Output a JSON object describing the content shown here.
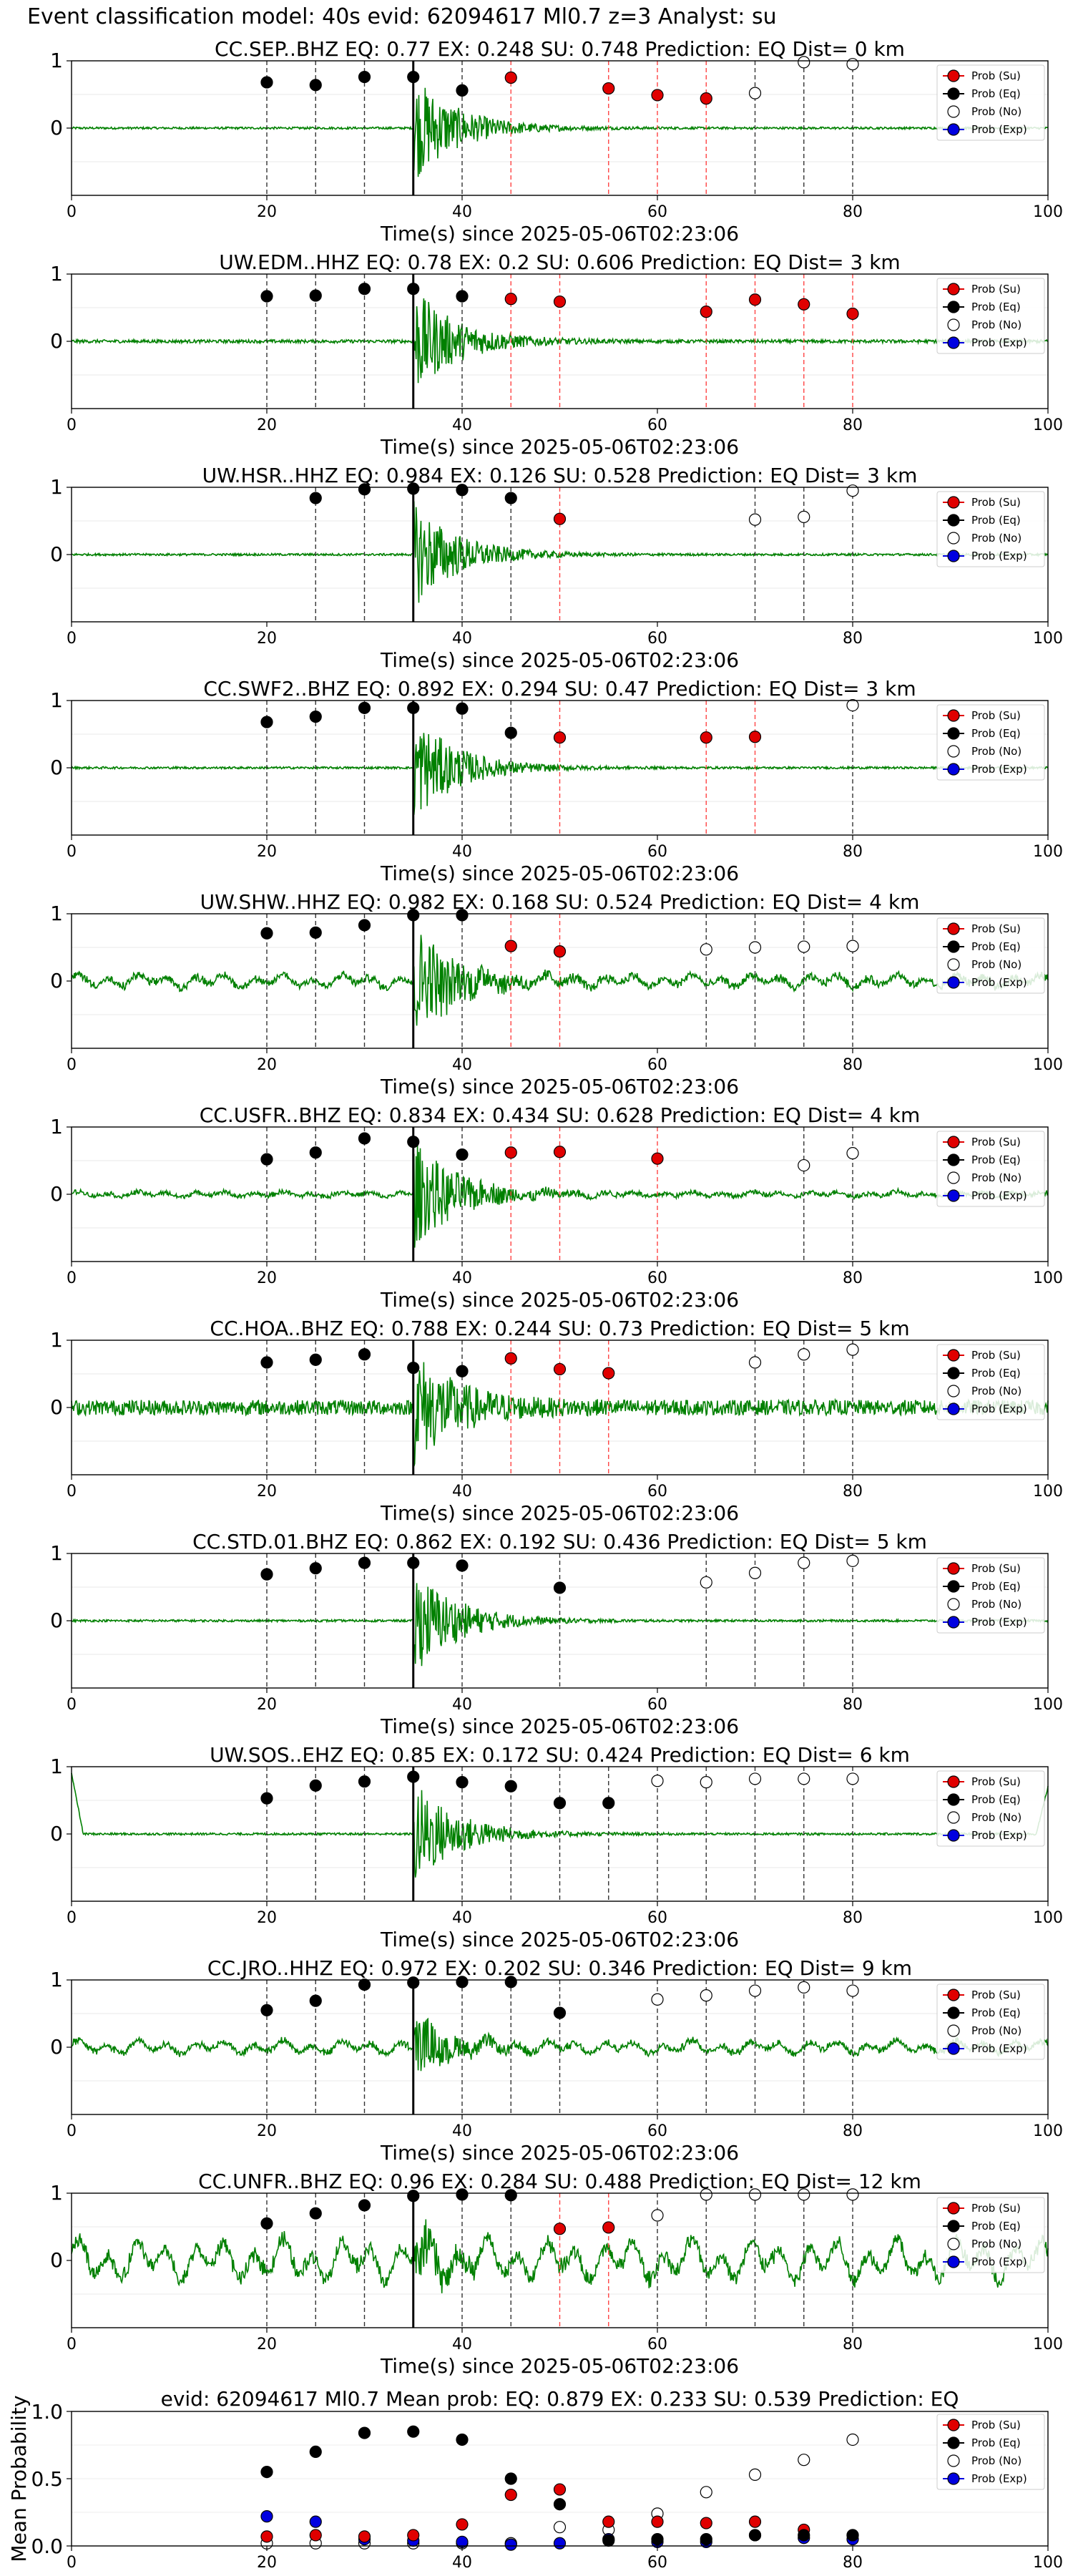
{
  "suptitle": "Event classification model: 40s evid: 62094617 Ml0.7 z=3 Analyst: su",
  "legend_labels": [
    "Prob (Su)",
    "Prob (Eq)",
    "Prob (No)",
    "Prob (Exp)"
  ],
  "colors": {
    "su": "#e00000",
    "eq": "#000000",
    "no": "#ffffff",
    "exp": "#0000e0",
    "wave": "#008000"
  },
  "chart_data": [
    {
      "type": "line",
      "title": "CC.SEP..BHZ   EQ: 0.77   EX: 0.248   SU: 0.748   Prediction: EQ    Dist= 0 km",
      "xlabel": "Time(s) since 2025-05-06T02:23:06",
      "ylabel": "",
      "xlim": [
        0,
        100
      ],
      "ylim": [
        -1,
        1
      ],
      "xticks": [
        "0",
        "20",
        "40",
        "60",
        "80",
        "100"
      ],
      "yticks": [
        "0",
        "1"
      ],
      "amplitude": 1.0,
      "noise": 0.02,
      "lowfreq": 0,
      "black_line_x": 35,
      "points": [
        {
          "x": 20,
          "y": 0.68,
          "cls": "eq"
        },
        {
          "x": 25,
          "y": 0.64,
          "cls": "eq"
        },
        {
          "x": 30,
          "y": 0.76,
          "cls": "eq"
        },
        {
          "x": 35,
          "y": 0.76,
          "cls": "eq"
        },
        {
          "x": 40,
          "y": 0.56,
          "cls": "eq"
        },
        {
          "x": 45,
          "y": 0.75,
          "cls": "su"
        },
        {
          "x": 55,
          "y": 0.59,
          "cls": "su"
        },
        {
          "x": 60,
          "y": 0.49,
          "cls": "su"
        },
        {
          "x": 65,
          "y": 0.44,
          "cls": "su"
        },
        {
          "x": 70,
          "y": 0.52,
          "cls": "no"
        },
        {
          "x": 75,
          "y": 0.98,
          "cls": "no"
        },
        {
          "x": 80,
          "y": 0.95,
          "cls": "no"
        }
      ]
    },
    {
      "type": "line",
      "title": "UW.EDM..HHZ   EQ: 0.78   EX: 0.2   SU: 0.606   Prediction: EQ    Dist= 3 km",
      "xlabel": "Time(s) since 2025-05-06T02:23:06",
      "ylabel": "",
      "xlim": [
        0,
        100
      ],
      "ylim": [
        -1,
        1
      ],
      "xticks": [
        "0",
        "20",
        "40",
        "60",
        "80",
        "100"
      ],
      "yticks": [
        "0",
        "1"
      ],
      "amplitude": 1.0,
      "noise": 0.03,
      "lowfreq": 0,
      "black_line_x": 35,
      "points": [
        {
          "x": 20,
          "y": 0.67,
          "cls": "eq"
        },
        {
          "x": 25,
          "y": 0.68,
          "cls": "eq"
        },
        {
          "x": 30,
          "y": 0.78,
          "cls": "eq"
        },
        {
          "x": 35,
          "y": 0.78,
          "cls": "eq"
        },
        {
          "x": 40,
          "y": 0.67,
          "cls": "eq"
        },
        {
          "x": 45,
          "y": 0.63,
          "cls": "su"
        },
        {
          "x": 50,
          "y": 0.59,
          "cls": "su"
        },
        {
          "x": 65,
          "y": 0.44,
          "cls": "su"
        },
        {
          "x": 70,
          "y": 0.62,
          "cls": "su"
        },
        {
          "x": 75,
          "y": 0.55,
          "cls": "su"
        },
        {
          "x": 80,
          "y": 0.41,
          "cls": "su"
        }
      ]
    },
    {
      "type": "line",
      "title": "UW.HSR..HHZ   EQ: 0.984   EX: 0.126   SU: 0.528   Prediction: EQ    Dist= 3 km",
      "xlabel": "Time(s) since 2025-05-06T02:23:06",
      "ylabel": "",
      "xlim": [
        0,
        100
      ],
      "ylim": [
        -1,
        1
      ],
      "xticks": [
        "0",
        "20",
        "40",
        "60",
        "80",
        "100"
      ],
      "yticks": [
        "0",
        "1"
      ],
      "amplitude": 1.0,
      "noise": 0.02,
      "lowfreq": 0,
      "black_line_x": 35,
      "points": [
        {
          "x": 25,
          "y": 0.84,
          "cls": "eq"
        },
        {
          "x": 30,
          "y": 0.97,
          "cls": "eq"
        },
        {
          "x": 35,
          "y": 0.98,
          "cls": "eq"
        },
        {
          "x": 40,
          "y": 0.96,
          "cls": "eq"
        },
        {
          "x": 45,
          "y": 0.84,
          "cls": "eq"
        },
        {
          "x": 50,
          "y": 0.53,
          "cls": "su"
        },
        {
          "x": 70,
          "y": 0.52,
          "cls": "no"
        },
        {
          "x": 75,
          "y": 0.56,
          "cls": "no"
        },
        {
          "x": 80,
          "y": 0.95,
          "cls": "no"
        }
      ]
    },
    {
      "type": "line",
      "title": "CC.SWF2..BHZ   EQ: 0.892   EX: 0.294   SU: 0.47   Prediction: EQ    Dist= 3 km",
      "xlabel": "Time(s) since 2025-05-06T02:23:06",
      "ylabel": "",
      "xlim": [
        0,
        100
      ],
      "ylim": [
        -1,
        1
      ],
      "xticks": [
        "0",
        "20",
        "40",
        "60",
        "80",
        "100"
      ],
      "yticks": [
        "0",
        "1"
      ],
      "amplitude": 1.0,
      "noise": 0.02,
      "lowfreq": 0,
      "black_line_x": 35,
      "points": [
        {
          "x": 20,
          "y": 0.68,
          "cls": "eq"
        },
        {
          "x": 25,
          "y": 0.76,
          "cls": "eq"
        },
        {
          "x": 30,
          "y": 0.89,
          "cls": "eq"
        },
        {
          "x": 35,
          "y": 0.89,
          "cls": "eq"
        },
        {
          "x": 40,
          "y": 0.88,
          "cls": "eq"
        },
        {
          "x": 45,
          "y": 0.52,
          "cls": "eq"
        },
        {
          "x": 50,
          "y": 0.45,
          "cls": "su"
        },
        {
          "x": 65,
          "y": 0.45,
          "cls": "su"
        },
        {
          "x": 70,
          "y": 0.46,
          "cls": "su"
        },
        {
          "x": 80,
          "y": 0.93,
          "cls": "no"
        }
      ]
    },
    {
      "type": "line",
      "title": "UW.SHW..HHZ   EQ: 0.982   EX: 0.168   SU: 0.524   Prediction: EQ    Dist= 4 km",
      "xlabel": "Time(s) since 2025-05-06T02:23:06",
      "ylabel": "",
      "xlim": [
        0,
        100
      ],
      "ylim": [
        -1,
        1
      ],
      "xticks": [
        "0",
        "20",
        "40",
        "60",
        "80",
        "100"
      ],
      "yticks": [
        "0",
        "1"
      ],
      "amplitude": 1.0,
      "noise": 0.06,
      "lowfreq": 0.1,
      "black_line_x": 35,
      "points": [
        {
          "x": 20,
          "y": 0.71,
          "cls": "eq"
        },
        {
          "x": 25,
          "y": 0.72,
          "cls": "eq"
        },
        {
          "x": 30,
          "y": 0.83,
          "cls": "eq"
        },
        {
          "x": 35,
          "y": 0.98,
          "cls": "eq"
        },
        {
          "x": 40,
          "y": 0.98,
          "cls": "eq"
        },
        {
          "x": 45,
          "y": 0.52,
          "cls": "su"
        },
        {
          "x": 50,
          "y": 0.44,
          "cls": "su"
        },
        {
          "x": 65,
          "y": 0.47,
          "cls": "no"
        },
        {
          "x": 70,
          "y": 0.5,
          "cls": "no"
        },
        {
          "x": 75,
          "y": 0.51,
          "cls": "no"
        },
        {
          "x": 80,
          "y": 0.52,
          "cls": "no"
        }
      ]
    },
    {
      "type": "line",
      "title": "CC.USFR..BHZ   EQ: 0.834   EX: 0.434   SU: 0.628   Prediction: EQ    Dist= 4 km",
      "xlabel": "Time(s) since 2025-05-06T02:23:06",
      "ylabel": "",
      "xlim": [
        0,
        100
      ],
      "ylim": [
        -1,
        1
      ],
      "xticks": [
        "0",
        "20",
        "40",
        "60",
        "80",
        "100"
      ],
      "yticks": [
        "0",
        "1"
      ],
      "amplitude": 1.0,
      "noise": 0.04,
      "lowfreq": 0.04,
      "black_line_x": 35,
      "points": [
        {
          "x": 20,
          "y": 0.52,
          "cls": "eq"
        },
        {
          "x": 25,
          "y": 0.62,
          "cls": "eq"
        },
        {
          "x": 30,
          "y": 0.83,
          "cls": "eq"
        },
        {
          "x": 35,
          "y": 0.78,
          "cls": "eq"
        },
        {
          "x": 40,
          "y": 0.59,
          "cls": "eq"
        },
        {
          "x": 45,
          "y": 0.62,
          "cls": "su"
        },
        {
          "x": 50,
          "y": 0.63,
          "cls": "su"
        },
        {
          "x": 60,
          "y": 0.53,
          "cls": "su"
        },
        {
          "x": 75,
          "y": 0.43,
          "cls": "no"
        },
        {
          "x": 80,
          "y": 0.61,
          "cls": "no"
        }
      ]
    },
    {
      "type": "line",
      "title": "CC.HOA..BHZ   EQ: 0.788   EX: 0.244   SU: 0.73   Prediction: EQ    Dist= 5 km",
      "xlabel": "Time(s) since 2025-05-06T02:23:06",
      "ylabel": "",
      "xlim": [
        0,
        100
      ],
      "ylim": [
        -1,
        1
      ],
      "xticks": [
        "0",
        "20",
        "40",
        "60",
        "80",
        "100"
      ],
      "yticks": [
        "0",
        "1"
      ],
      "amplitude": 1.0,
      "noise": 0.14,
      "lowfreq": 0,
      "black_line_x": 35,
      "points": [
        {
          "x": 20,
          "y": 0.67,
          "cls": "eq"
        },
        {
          "x": 25,
          "y": 0.71,
          "cls": "eq"
        },
        {
          "x": 30,
          "y": 0.79,
          "cls": "eq"
        },
        {
          "x": 35,
          "y": 0.59,
          "cls": "eq"
        },
        {
          "x": 40,
          "y": 0.54,
          "cls": "eq"
        },
        {
          "x": 45,
          "y": 0.73,
          "cls": "su"
        },
        {
          "x": 50,
          "y": 0.57,
          "cls": "su"
        },
        {
          "x": 55,
          "y": 0.51,
          "cls": "su"
        },
        {
          "x": 70,
          "y": 0.67,
          "cls": "no"
        },
        {
          "x": 75,
          "y": 0.79,
          "cls": "no"
        },
        {
          "x": 80,
          "y": 0.86,
          "cls": "no"
        }
      ]
    },
    {
      "type": "line",
      "title": "CC.STD.01.BHZ   EQ: 0.862   EX: 0.192   SU: 0.436   Prediction: EQ    Dist= 5 km",
      "xlabel": "Time(s) since 2025-05-06T02:23:06",
      "ylabel": "",
      "xlim": [
        0,
        100
      ],
      "ylim": [
        -1,
        1
      ],
      "xticks": [
        "0",
        "20",
        "40",
        "60",
        "80",
        "100"
      ],
      "yticks": [
        "0",
        "1"
      ],
      "amplitude": 1.0,
      "noise": 0.02,
      "lowfreq": 0,
      "black_line_x": 35,
      "points": [
        {
          "x": 20,
          "y": 0.69,
          "cls": "eq"
        },
        {
          "x": 25,
          "y": 0.78,
          "cls": "eq"
        },
        {
          "x": 30,
          "y": 0.86,
          "cls": "eq"
        },
        {
          "x": 35,
          "y": 0.86,
          "cls": "eq"
        },
        {
          "x": 40,
          "y": 0.82,
          "cls": "eq"
        },
        {
          "x": 50,
          "y": 0.49,
          "cls": "eq"
        },
        {
          "x": 65,
          "y": 0.57,
          "cls": "no"
        },
        {
          "x": 70,
          "y": 0.71,
          "cls": "no"
        },
        {
          "x": 75,
          "y": 0.86,
          "cls": "no"
        },
        {
          "x": 80,
          "y": 0.89,
          "cls": "no"
        }
      ]
    },
    {
      "type": "line",
      "title": "UW.SOS..EHZ   EQ: 0.85   EX: 0.172   SU: 0.424   Prediction: EQ    Dist= 6 km",
      "xlabel": "Time(s) since 2025-05-06T02:23:06",
      "ylabel": "",
      "xlim": [
        0,
        100
      ],
      "ylim": [
        -1,
        1
      ],
      "xticks": [
        "0",
        "20",
        "40",
        "60",
        "80",
        "100"
      ],
      "yticks": [
        "0",
        "1"
      ],
      "amplitude": 1.0,
      "noise": 0.02,
      "lowfreq": 0,
      "edge_spike": true,
      "black_line_x": 35,
      "points": [
        {
          "x": 20,
          "y": 0.53,
          "cls": "eq"
        },
        {
          "x": 25,
          "y": 0.72,
          "cls": "eq"
        },
        {
          "x": 30,
          "y": 0.78,
          "cls": "eq"
        },
        {
          "x": 35,
          "y": 0.85,
          "cls": "eq"
        },
        {
          "x": 40,
          "y": 0.77,
          "cls": "eq"
        },
        {
          "x": 45,
          "y": 0.71,
          "cls": "eq"
        },
        {
          "x": 50,
          "y": 0.46,
          "cls": "eq"
        },
        {
          "x": 55,
          "y": 0.46,
          "cls": "eq"
        },
        {
          "x": 60,
          "y": 0.79,
          "cls": "no"
        },
        {
          "x": 65,
          "y": 0.77,
          "cls": "no"
        },
        {
          "x": 70,
          "y": 0.82,
          "cls": "no"
        },
        {
          "x": 75,
          "y": 0.82,
          "cls": "no"
        },
        {
          "x": 80,
          "y": 0.82,
          "cls": "no"
        }
      ]
    },
    {
      "type": "line",
      "title": "CC.JRO..HHZ   EQ: 0.972   EX: 0.202   SU: 0.346   Prediction: EQ    Dist= 9 km",
      "xlabel": "Time(s) since 2025-05-06T02:23:06",
      "ylabel": "",
      "xlim": [
        0,
        100
      ],
      "ylim": [
        -1,
        1
      ],
      "xticks": [
        "0",
        "20",
        "40",
        "60",
        "80",
        "100"
      ],
      "yticks": [
        "0",
        "1"
      ],
      "amplitude": 0.6,
      "noise": 0.05,
      "lowfreq": 0.1,
      "black_line_x": 35,
      "points": [
        {
          "x": 20,
          "y": 0.55,
          "cls": "eq"
        },
        {
          "x": 25,
          "y": 0.69,
          "cls": "eq"
        },
        {
          "x": 30,
          "y": 0.93,
          "cls": "eq"
        },
        {
          "x": 35,
          "y": 0.96,
          "cls": "eq"
        },
        {
          "x": 40,
          "y": 0.97,
          "cls": "eq"
        },
        {
          "x": 45,
          "y": 0.97,
          "cls": "eq"
        },
        {
          "x": 50,
          "y": 0.51,
          "cls": "eq"
        },
        {
          "x": 60,
          "y": 0.71,
          "cls": "no"
        },
        {
          "x": 65,
          "y": 0.77,
          "cls": "no"
        },
        {
          "x": 70,
          "y": 0.84,
          "cls": "no"
        },
        {
          "x": 75,
          "y": 0.89,
          "cls": "no"
        },
        {
          "x": 80,
          "y": 0.84,
          "cls": "no"
        }
      ]
    },
    {
      "type": "line",
      "title": "CC.UNFR..BHZ   EQ: 0.96   EX: 0.284   SU: 0.488   Prediction: EQ    Dist= 12 km",
      "xlabel": "Time(s) since 2025-05-06T02:23:06",
      "ylabel": "",
      "xlim": [
        0,
        100
      ],
      "ylim": [
        -1,
        1
      ],
      "xticks": [
        "0",
        "20",
        "40",
        "60",
        "80",
        "100"
      ],
      "yticks": [
        "0",
        "1"
      ],
      "amplitude": 0.45,
      "noise": 0.08,
      "lowfreq": 0.32,
      "black_line_x": 35,
      "points": [
        {
          "x": 20,
          "y": 0.55,
          "cls": "eq"
        },
        {
          "x": 25,
          "y": 0.7,
          "cls": "eq"
        },
        {
          "x": 30,
          "y": 0.82,
          "cls": "eq"
        },
        {
          "x": 35,
          "y": 0.96,
          "cls": "eq"
        },
        {
          "x": 40,
          "y": 0.98,
          "cls": "eq"
        },
        {
          "x": 45,
          "y": 0.97,
          "cls": "eq"
        },
        {
          "x": 50,
          "y": 0.47,
          "cls": "su"
        },
        {
          "x": 55,
          "y": 0.49,
          "cls": "su"
        },
        {
          "x": 60,
          "y": 0.67,
          "cls": "no"
        },
        {
          "x": 65,
          "y": 0.98,
          "cls": "no"
        },
        {
          "x": 70,
          "y": 0.98,
          "cls": "no"
        },
        {
          "x": 75,
          "y": 0.98,
          "cls": "no"
        },
        {
          "x": 80,
          "y": 0.98,
          "cls": "no"
        }
      ]
    },
    {
      "type": "scatter",
      "title": "evid: 62094617   Ml0.7   Mean prob:   EQ: 0.879   EX: 0.233   SU: 0.539   Prediction: EQ",
      "xlabel": "",
      "ylabel": "Mean Probability",
      "xlim": [
        0,
        100
      ],
      "ylim": [
        0,
        1
      ],
      "xticks": [
        "0",
        "20",
        "40",
        "60",
        "80",
        "100"
      ],
      "yticks": [
        "0.0",
        "0.5",
        "1.0"
      ],
      "x": [
        20,
        25,
        30,
        35,
        40,
        45,
        50,
        55,
        60,
        65,
        70,
        75,
        80
      ],
      "series": [
        {
          "name": "Prob (Su)",
          "cls": "su",
          "values": [
            0.07,
            0.08,
            0.07,
            0.08,
            0.16,
            0.38,
            0.42,
            0.18,
            0.18,
            0.17,
            0.18,
            0.12,
            0.08
          ]
        },
        {
          "name": "Prob (Eq)",
          "cls": "eq",
          "values": [
            0.55,
            0.7,
            0.84,
            0.85,
            0.79,
            0.5,
            0.31,
            0.04,
            0.05,
            0.05,
            0.08,
            0.08,
            0.08
          ]
        },
        {
          "name": "Prob (No)",
          "cls": "no",
          "values": [
            0.02,
            0.02,
            0.02,
            0.02,
            0.02,
            0.02,
            0.14,
            0.12,
            0.24,
            0.4,
            0.53,
            0.64,
            0.79
          ]
        },
        {
          "name": "Prob (Exp)",
          "cls": "exp",
          "values": [
            0.22,
            0.18,
            0.05,
            0.04,
            0.03,
            0.01,
            0.02,
            0.05,
            0.03,
            0.03,
            0.08,
            0.06,
            0.05
          ]
        }
      ]
    }
  ]
}
